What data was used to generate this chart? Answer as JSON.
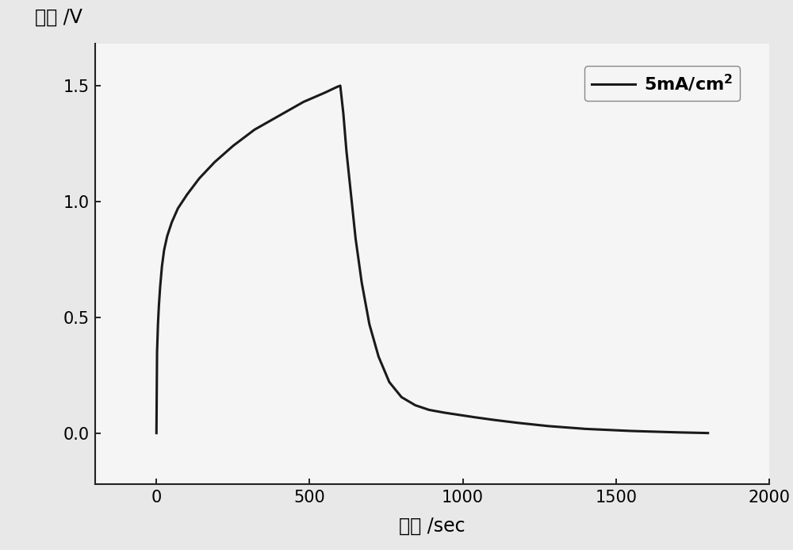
{
  "title": "",
  "xlabel": "时间 /sec",
  "ylabel": "电压 /V",
  "legend_label": "5mA/cm²",
  "line_color": "#1a1a1a",
  "line_width": 2.2,
  "background_color": "#e8e8e8",
  "plot_bg_color": "#f5f5f5",
  "xlim": [
    -200,
    2000
  ],
  "ylim": [
    -0.22,
    1.68
  ],
  "xticks": [
    0,
    500,
    1000,
    1500,
    2000
  ],
  "yticks": [
    0.0,
    0.5,
    1.0,
    1.5
  ],
  "charge_x": [
    0,
    2,
    5,
    8,
    12,
    18,
    25,
    35,
    50,
    70,
    100,
    140,
    190,
    250,
    320,
    400,
    480,
    550,
    590,
    600
  ],
  "charge_y": [
    0.0,
    0.35,
    0.47,
    0.55,
    0.63,
    0.72,
    0.79,
    0.85,
    0.91,
    0.97,
    1.03,
    1.1,
    1.17,
    1.24,
    1.31,
    1.37,
    1.43,
    1.47,
    1.495,
    1.5
  ],
  "discharge_x": [
    600,
    610,
    620,
    635,
    650,
    670,
    695,
    725,
    760,
    800,
    845,
    890,
    940,
    990,
    1040,
    1100,
    1180,
    1280,
    1400,
    1550,
    1700,
    1800
  ],
  "discharge_y": [
    1.5,
    1.38,
    1.22,
    1.03,
    0.84,
    0.65,
    0.47,
    0.33,
    0.22,
    0.155,
    0.12,
    0.1,
    0.088,
    0.078,
    0.068,
    0.057,
    0.044,
    0.03,
    0.018,
    0.009,
    0.003,
    0.0
  ]
}
